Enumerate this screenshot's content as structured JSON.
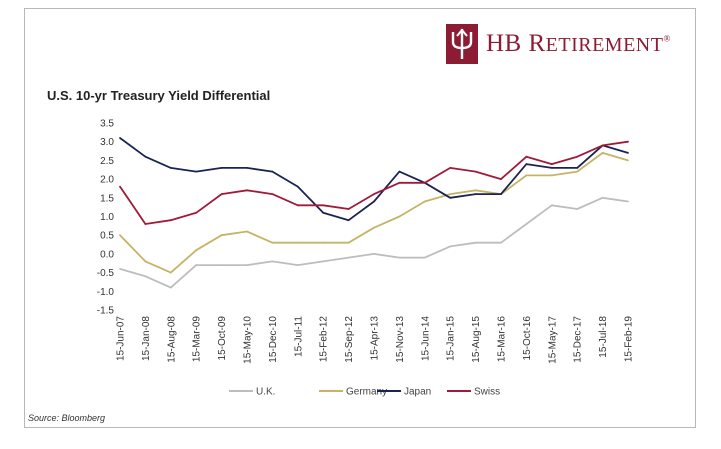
{
  "brand": {
    "name_main": "HB R",
    "name_small": "ETIREMENT",
    "registered": "®",
    "color": "#8b1c34"
  },
  "source": "Source: Bloomberg",
  "chart_data": {
    "type": "line",
    "title": "U.S. 10-yr Treasury Yield Differential",
    "xlabel": "",
    "ylabel": "",
    "ylim": [
      -1.5,
      3.5
    ],
    "y_ticks": [
      "3.5",
      "3.0",
      "2.5",
      "2.0",
      "1.5",
      "1.0",
      "0.5",
      "0.0",
      "-0.5",
      "-1.0",
      "-1.5"
    ],
    "x_tick_labels": [
      "15-Jun-07",
      "15-Jan-08",
      "15-Aug-08",
      "15-Mar-09",
      "15-Oct-09",
      "15-May-10",
      "15-Dec-10",
      "15-Jul-11",
      "15-Feb-12",
      "15-Sep-12",
      "15-Apr-13",
      "15-Nov-13",
      "15-Jun-14",
      "15-Jan-15",
      "15-Aug-15",
      "15-Mar-16",
      "15-Oct-16",
      "15-May-17",
      "15-Dec-17",
      "15-Jul-18",
      "15-Feb-19"
    ],
    "legend_position": "bottom",
    "grid": false,
    "x": [
      "15-Jun-07",
      "15-Jan-08",
      "15-Aug-08",
      "15-Mar-09",
      "15-Oct-09",
      "15-May-10",
      "15-Dec-10",
      "15-Jul-11",
      "15-Feb-12",
      "15-Sep-12",
      "15-Apr-13",
      "15-Nov-13",
      "15-Jun-14",
      "15-Jan-15",
      "15-Aug-15",
      "15-Mar-16",
      "15-Oct-16",
      "15-May-17",
      "15-Dec-17",
      "15-Jul-18",
      "15-Feb-19"
    ],
    "series": [
      {
        "name": "U.K.",
        "color": "#bdbdbd",
        "values": [
          -0.4,
          -0.6,
          -0.9,
          -0.3,
          -0.3,
          -0.3,
          -0.2,
          -0.3,
          -0.2,
          -0.1,
          0.0,
          -0.1,
          -0.1,
          0.2,
          0.3,
          0.3,
          0.8,
          1.3,
          1.2,
          1.5,
          1.4
        ]
      },
      {
        "name": "Germany",
        "color": "#c5b465",
        "values": [
          0.5,
          -0.2,
          -0.5,
          0.1,
          0.5,
          0.6,
          0.3,
          0.3,
          0.3,
          0.3,
          0.7,
          1.0,
          1.4,
          1.6,
          1.7,
          1.6,
          2.1,
          2.1,
          2.2,
          2.7,
          2.5
        ]
      },
      {
        "name": "Japan",
        "color": "#1a2452",
        "values": [
          3.1,
          2.6,
          2.3,
          2.2,
          2.3,
          2.3,
          2.2,
          1.8,
          1.1,
          0.9,
          1.4,
          2.2,
          1.9,
          1.5,
          1.6,
          1.6,
          2.4,
          2.3,
          2.3,
          2.9,
          2.7
        ]
      },
      {
        "name": "Swiss",
        "color": "#a11a3a",
        "values": [
          1.8,
          0.8,
          0.9,
          1.1,
          1.6,
          1.7,
          1.6,
          1.3,
          1.3,
          1.2,
          1.6,
          1.9,
          1.9,
          2.3,
          2.2,
          2.0,
          2.6,
          2.4,
          2.6,
          2.9,
          3.0
        ]
      }
    ]
  }
}
